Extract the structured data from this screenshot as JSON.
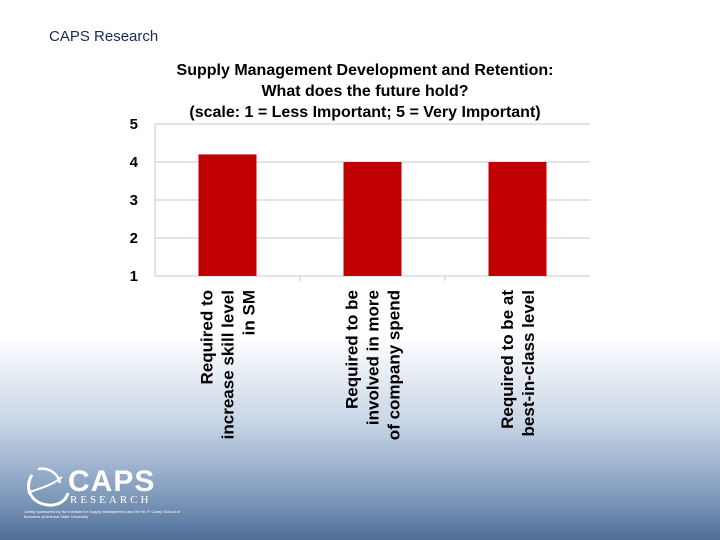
{
  "header": {
    "label": "CAPS Research"
  },
  "chart_data": {
    "type": "bar",
    "title": [
      "Supply Management Development and Retention:",
      "What does the future hold?",
      "(scale: 1 = Less Important; 5 = Very Important)"
    ],
    "categories": [
      [
        "Required to",
        "increase skill level",
        "in SM"
      ],
      [
        "Required to be",
        "involved in more",
        "of company spend"
      ],
      [
        "Required to be at",
        "best-in-class level"
      ]
    ],
    "values": [
      4.2,
      4.0,
      4.0
    ],
    "ylim": [
      1,
      5
    ],
    "yticks": [
      "1",
      "2",
      "3",
      "4",
      "5"
    ],
    "bar_color": "#c00000",
    "grid": true,
    "xlabel": "",
    "ylabel": ""
  },
  "logo": {
    "word": "CAPS",
    "sub": "RESEARCH",
    "fine_print": "Jointly sponsored by the Institute for Supply Management and the W. P. Carey School of Business at Arizona State University"
  }
}
